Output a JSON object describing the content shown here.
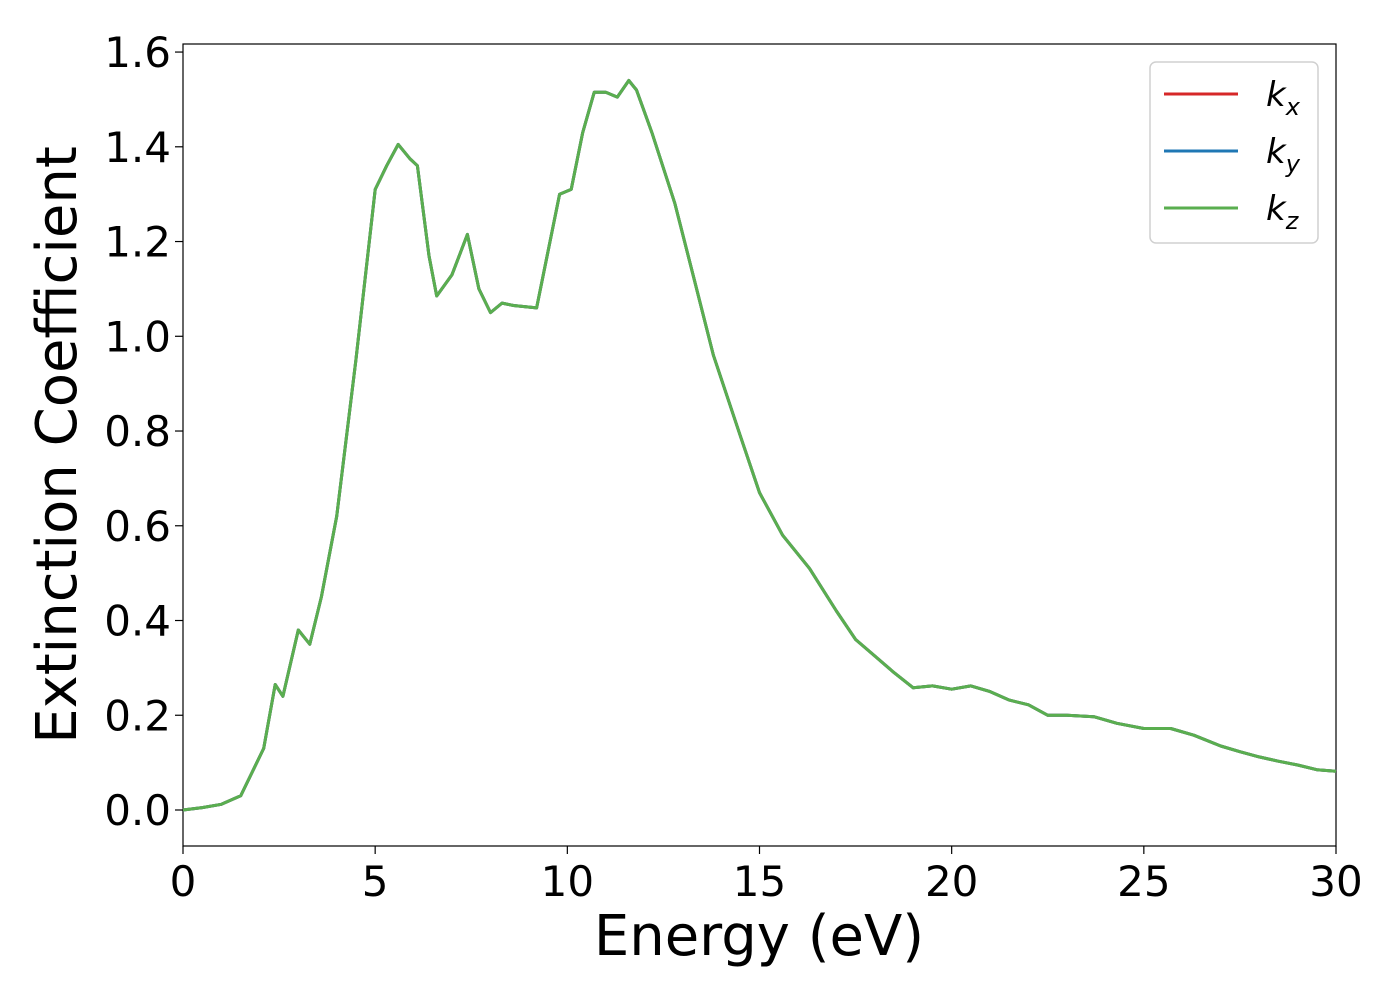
{
  "chart_data": {
    "type": "line",
    "x_label": "Energy (eV)",
    "y_label": "Extinction Coefficient",
    "x": [
      0,
      0.5,
      1,
      1.5,
      1.8,
      2.1,
      2.4,
      2.6,
      3.0,
      3.3,
      3.6,
      4.0,
      4.5,
      5.0,
      5.3,
      5.6,
      5.9,
      6.1,
      6.4,
      6.6,
      7.0,
      7.4,
      7.7,
      8.0,
      8.3,
      8.6,
      9.2,
      9.5,
      9.8,
      10.1,
      10.4,
      10.7,
      11.0,
      11.3,
      11.6,
      11.8,
      12.2,
      12.8,
      13.3,
      13.8,
      14.5,
      15.0,
      15.6,
      16.3,
      17.0,
      17.5,
      18.0,
      18.5,
      19.0,
      19.5,
      20.0,
      20.5,
      21.0,
      21.5,
      22.0,
      22.5,
      23.0,
      23.7,
      24.3,
      25.0,
      25.7,
      26.3,
      27.0,
      27.5,
      28.0,
      28.5,
      29.0,
      29.5,
      30
    ],
    "series": [
      {
        "name": "kx",
        "color": "#d62728",
        "values": [
          0.0,
          0.005,
          0.012,
          0.03,
          0.08,
          0.13,
          0.265,
          0.24,
          0.38,
          0.35,
          0.45,
          0.62,
          0.95,
          1.31,
          1.36,
          1.405,
          1.375,
          1.36,
          1.17,
          1.085,
          1.13,
          1.215,
          1.1,
          1.05,
          1.07,
          1.065,
          1.06,
          1.18,
          1.3,
          1.31,
          1.43,
          1.515,
          1.515,
          1.505,
          1.54,
          1.52,
          1.43,
          1.28,
          1.12,
          0.96,
          0.79,
          0.67,
          0.58,
          0.51,
          0.42,
          0.36,
          0.325,
          0.29,
          0.258,
          0.262,
          0.255,
          0.262,
          0.25,
          0.232,
          0.222,
          0.2,
          0.2,
          0.197,
          0.183,
          0.172,
          0.172,
          0.158,
          0.135,
          0.123,
          0.112,
          0.103,
          0.095,
          0.085,
          0.082
        ]
      },
      {
        "name": "ky",
        "color": "#1f77b4",
        "values": [
          0.0,
          0.005,
          0.012,
          0.03,
          0.08,
          0.13,
          0.265,
          0.24,
          0.38,
          0.35,
          0.45,
          0.62,
          0.95,
          1.31,
          1.36,
          1.405,
          1.375,
          1.36,
          1.17,
          1.085,
          1.13,
          1.215,
          1.1,
          1.05,
          1.07,
          1.065,
          1.06,
          1.18,
          1.3,
          1.31,
          1.43,
          1.515,
          1.515,
          1.505,
          1.54,
          1.52,
          1.43,
          1.28,
          1.12,
          0.96,
          0.79,
          0.67,
          0.58,
          0.51,
          0.42,
          0.36,
          0.325,
          0.29,
          0.258,
          0.262,
          0.255,
          0.262,
          0.25,
          0.232,
          0.222,
          0.2,
          0.2,
          0.197,
          0.183,
          0.172,
          0.172,
          0.158,
          0.135,
          0.123,
          0.112,
          0.103,
          0.095,
          0.085,
          0.082
        ]
      },
      {
        "name": "kz",
        "color": "#5aae4f",
        "values": [
          0.0,
          0.005,
          0.012,
          0.03,
          0.08,
          0.13,
          0.265,
          0.24,
          0.38,
          0.35,
          0.45,
          0.62,
          0.95,
          1.31,
          1.36,
          1.405,
          1.375,
          1.36,
          1.17,
          1.085,
          1.13,
          1.215,
          1.1,
          1.05,
          1.07,
          1.065,
          1.06,
          1.18,
          1.3,
          1.31,
          1.43,
          1.515,
          1.515,
          1.505,
          1.54,
          1.52,
          1.43,
          1.28,
          1.12,
          0.96,
          0.79,
          0.67,
          0.58,
          0.51,
          0.42,
          0.36,
          0.325,
          0.29,
          0.258,
          0.262,
          0.255,
          0.262,
          0.25,
          0.232,
          0.222,
          0.2,
          0.2,
          0.197,
          0.183,
          0.172,
          0.172,
          0.158,
          0.135,
          0.123,
          0.112,
          0.103,
          0.095,
          0.085,
          0.082
        ]
      }
    ],
    "xlim": [
      0,
      30
    ],
    "xticks": [
      0,
      5,
      10,
      15,
      20,
      25,
      30
    ],
    "ylim": [
      -0.076,
      1.617
    ],
    "yticks": [
      {
        "value": 0,
        "label": "0.0"
      },
      {
        "value": 0.2,
        "label": "0.2"
      },
      {
        "value": 0.4,
        "label": "0.4"
      },
      {
        "value": 0.6,
        "label": "0.6"
      },
      {
        "value": 0.8,
        "label": "0.8"
      },
      {
        "value": 1.0,
        "label": "1.0"
      },
      {
        "value": 1.2,
        "label": "1.2"
      },
      {
        "value": 1.4,
        "label": "1.4"
      },
      {
        "value": 1.6,
        "label": "1.6"
      }
    ],
    "grid": false,
    "legend": "upper right"
  }
}
